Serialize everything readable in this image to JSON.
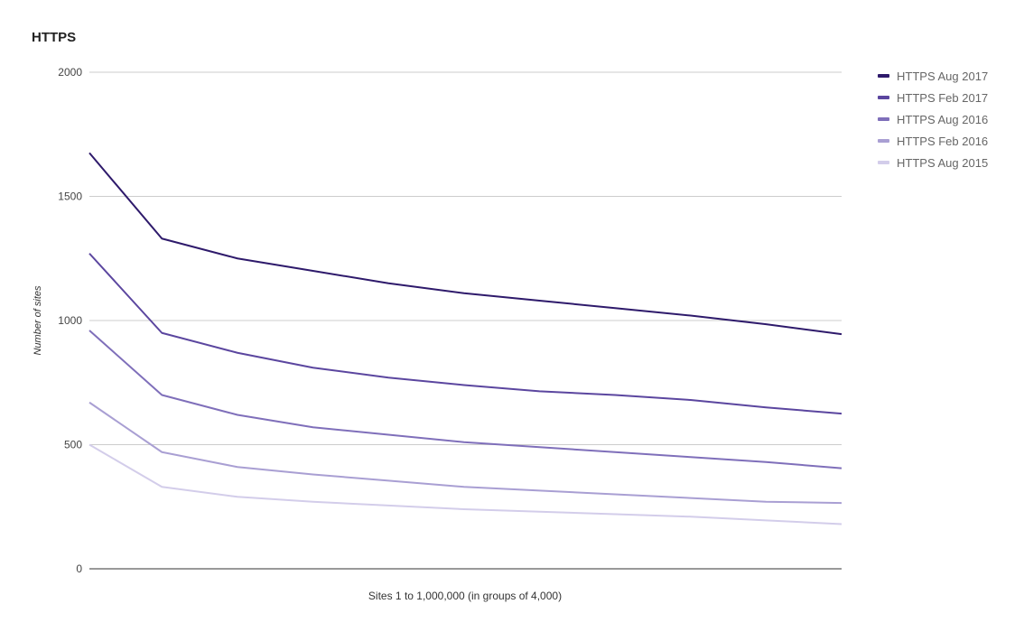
{
  "chart_data": {
    "type": "line",
    "title": "HTTPS",
    "xlabel": "Sites 1 to 1,000,000 (in groups of 4,000)",
    "ylabel": "Number of sites",
    "ylim": [
      0,
      2000
    ],
    "yticks": [
      "0",
      "500",
      "1000",
      "1500",
      "2000"
    ],
    "x": [
      1,
      25,
      50,
      75,
      100,
      125,
      150,
      175,
      200,
      225,
      250
    ],
    "grid": true,
    "legend_position": "right",
    "series": [
      {
        "name": "HTTPS Aug 2017",
        "color": "#2e1a6b",
        "values": [
          1675,
          1330,
          1250,
          1200,
          1150,
          1110,
          1080,
          1050,
          1020,
          985,
          945
        ]
      },
      {
        "name": "HTTPS Feb 2017",
        "color": "#5b469f",
        "values": [
          1270,
          950,
          870,
          810,
          770,
          740,
          715,
          700,
          680,
          650,
          625
        ]
      },
      {
        "name": "HTTPS Aug 2016",
        "color": "#7f6fba",
        "values": [
          960,
          700,
          620,
          570,
          540,
          510,
          490,
          470,
          450,
          430,
          405
        ]
      },
      {
        "name": "HTTPS Feb 2016",
        "color": "#a99fd3",
        "values": [
          670,
          470,
          410,
          380,
          355,
          330,
          315,
          300,
          285,
          270,
          265
        ]
      },
      {
        "name": "HTTPS Aug 2015",
        "color": "#d3cdea",
        "values": [
          500,
          330,
          290,
          270,
          255,
          240,
          230,
          220,
          210,
          195,
          180
        ]
      }
    ]
  }
}
